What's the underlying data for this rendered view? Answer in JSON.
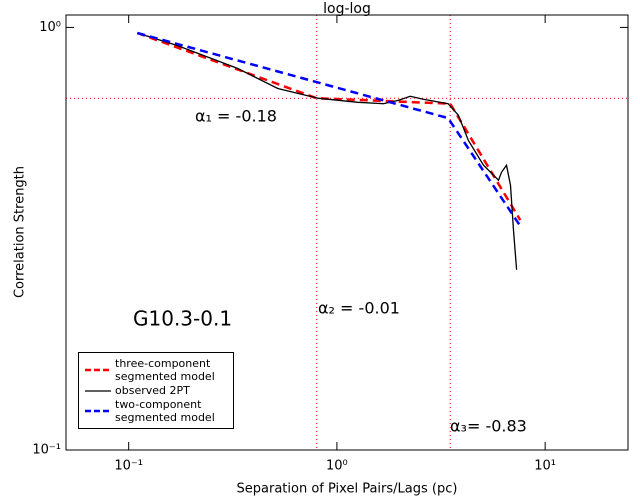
{
  "chart_data": {
    "type": "line",
    "title": "log-log",
    "x_label": "Separation of Pixel Pairs/Lags (pc)",
    "y_label": "Correlation Strength",
    "xscale": "log",
    "yscale": "log",
    "xlim": [
      0.05,
      25
    ],
    "ylim": [
      0.1,
      1.07
    ],
    "xticks": [
      {
        "value": 0.1,
        "label": "10⁻¹"
      },
      {
        "value": 1,
        "label": "10⁰"
      },
      {
        "value": 10,
        "label": "10¹"
      }
    ],
    "yticks": [
      {
        "value": 0.1,
        "label": "10⁻¹"
      },
      {
        "value": 1,
        "label": "10⁰"
      }
    ],
    "legend": "lower left",
    "series": [
      {
        "name": "three-component segmented model",
        "color": "#ff0000",
        "style": "dashed",
        "x": [
          0.11,
          0.8,
          3.5,
          7.6
        ],
        "values": [
          0.97,
          0.68,
          0.66,
          0.35
        ]
      },
      {
        "name": "observed 2PT",
        "color": "#000000",
        "style": "solid",
        "x": [
          0.11,
          0.171,
          0.333,
          0.52,
          0.81,
          1.26,
          1.67,
          1.97,
          2.25,
          2.6,
          3.42,
          3.83,
          4.28,
          5.06,
          5.97,
          6.17,
          6.52,
          6.82,
          7.05,
          7.29
        ],
        "values": [
          0.97,
          0.906,
          0.8,
          0.717,
          0.68,
          0.665,
          0.66,
          0.672,
          0.687,
          0.676,
          0.66,
          0.62,
          0.54,
          0.472,
          0.435,
          0.454,
          0.472,
          0.423,
          0.331,
          0.267
        ]
      },
      {
        "name": "two-component segmented model",
        "color": "#0000ff",
        "style": "dashed",
        "x": [
          0.11,
          3.42,
          7.62
        ],
        "values": [
          0.97,
          0.61,
          0.338
        ]
      }
    ],
    "reference_lines": {
      "color": "#ff0000",
      "y": [
        0.68
      ],
      "x": [
        0.8,
        3.5
      ]
    },
    "annotations": [
      "α₁ = -0.18",
      "α₂ = -0.01",
      "α₃= -0.83",
      "G10.3-0.1"
    ]
  }
}
